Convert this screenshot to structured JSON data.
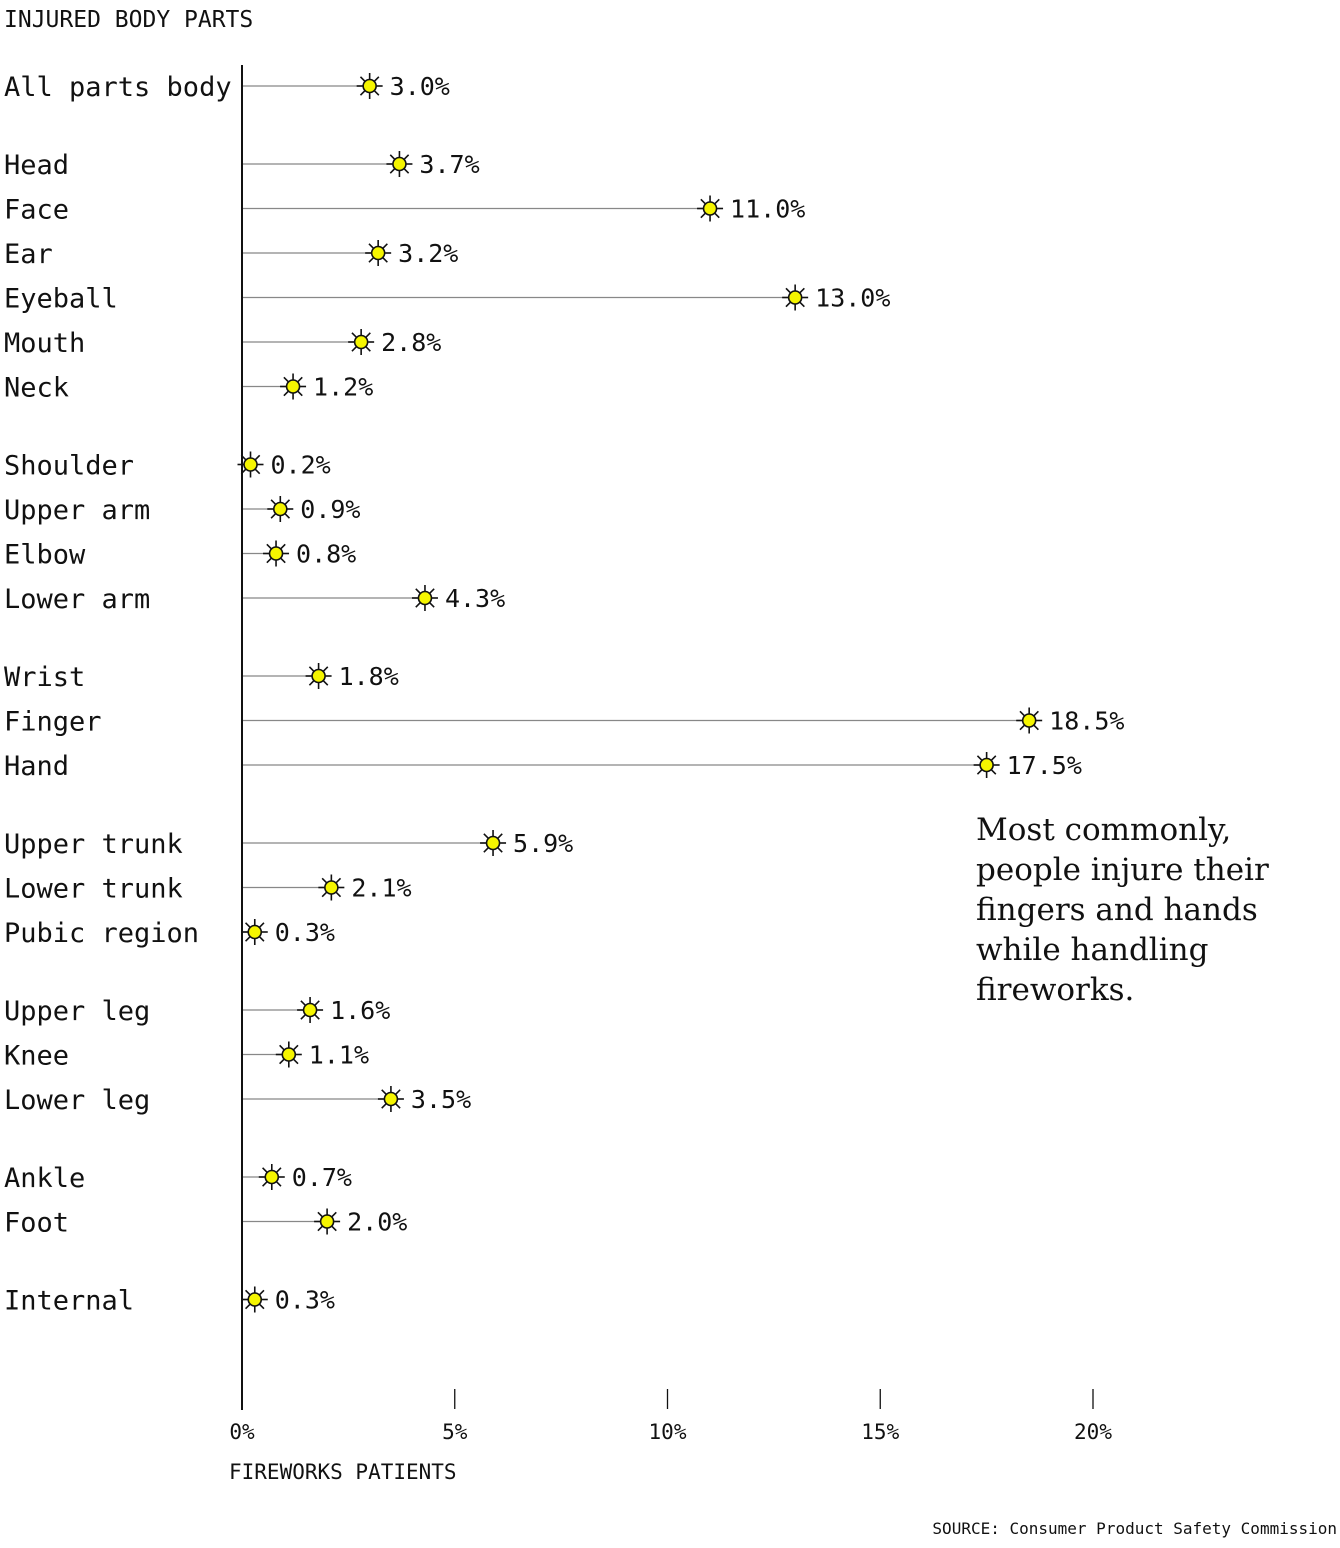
{
  "chart_data": {
    "type": "dot-lollipop",
    "title": "INJURED BODY PARTS",
    "xlabel": "FIREWORKS PATIENTS",
    "xlim": [
      0,
      20
    ],
    "x_ticks": [
      {
        "value": 0,
        "label": "0%"
      },
      {
        "value": 5,
        "label": "5%"
      },
      {
        "value": 10,
        "label": "10%"
      },
      {
        "value": 15,
        "label": "15%"
      },
      {
        "value": 20,
        "label": "20%"
      }
    ],
    "marker_color": "#f5f500",
    "line_color": "#888888",
    "categories": [
      {
        "label": "All parts body",
        "value": 3.0,
        "value_label": "3.0%",
        "group": 0
      },
      {
        "label": "Head",
        "value": 3.7,
        "value_label": "3.7%",
        "group": 1
      },
      {
        "label": "Face",
        "value": 11.0,
        "value_label": "11.0%",
        "group": 1
      },
      {
        "label": "Ear",
        "value": 3.2,
        "value_label": "3.2%",
        "group": 1
      },
      {
        "label": "Eyeball",
        "value": 13.0,
        "value_label": "13.0%",
        "group": 1
      },
      {
        "label": "Mouth",
        "value": 2.8,
        "value_label": "2.8%",
        "group": 1
      },
      {
        "label": "Neck",
        "value": 1.2,
        "value_label": "1.2%",
        "group": 1
      },
      {
        "label": "Shoulder",
        "value": 0.2,
        "value_label": "0.2%",
        "group": 2
      },
      {
        "label": "Upper arm",
        "value": 0.9,
        "value_label": "0.9%",
        "group": 2
      },
      {
        "label": "Elbow",
        "value": 0.8,
        "value_label": "0.8%",
        "group": 2
      },
      {
        "label": "Lower arm",
        "value": 4.3,
        "value_label": "4.3%",
        "group": 2
      },
      {
        "label": "Wrist",
        "value": 1.8,
        "value_label": "1.8%",
        "group": 3
      },
      {
        "label": "Finger",
        "value": 18.5,
        "value_label": "18.5%",
        "group": 3
      },
      {
        "label": "Hand",
        "value": 17.5,
        "value_label": "17.5%",
        "group": 3
      },
      {
        "label": "Upper trunk",
        "value": 5.9,
        "value_label": "5.9%",
        "group": 4
      },
      {
        "label": "Lower trunk",
        "value": 2.1,
        "value_label": "2.1%",
        "group": 4
      },
      {
        "label": "Pubic region",
        "value": 0.3,
        "value_label": "0.3%",
        "group": 4
      },
      {
        "label": "Upper leg",
        "value": 1.6,
        "value_label": "1.6%",
        "group": 5
      },
      {
        "label": "Knee",
        "value": 1.1,
        "value_label": "1.1%",
        "group": 5
      },
      {
        "label": "Lower leg",
        "value": 3.5,
        "value_label": "3.5%",
        "group": 5
      },
      {
        "label": "Ankle",
        "value": 0.7,
        "value_label": "0.7%",
        "group": 6
      },
      {
        "label": "Foot",
        "value": 2.0,
        "value_label": "2.0%",
        "group": 6
      },
      {
        "label": "Internal",
        "value": 0.3,
        "value_label": "0.3%",
        "group": 7
      }
    ],
    "annotation": "Most commonly, people injure their fingers and hands while handling fireworks.",
    "source": "SOURCE: Consumer Product Safety Commission"
  }
}
